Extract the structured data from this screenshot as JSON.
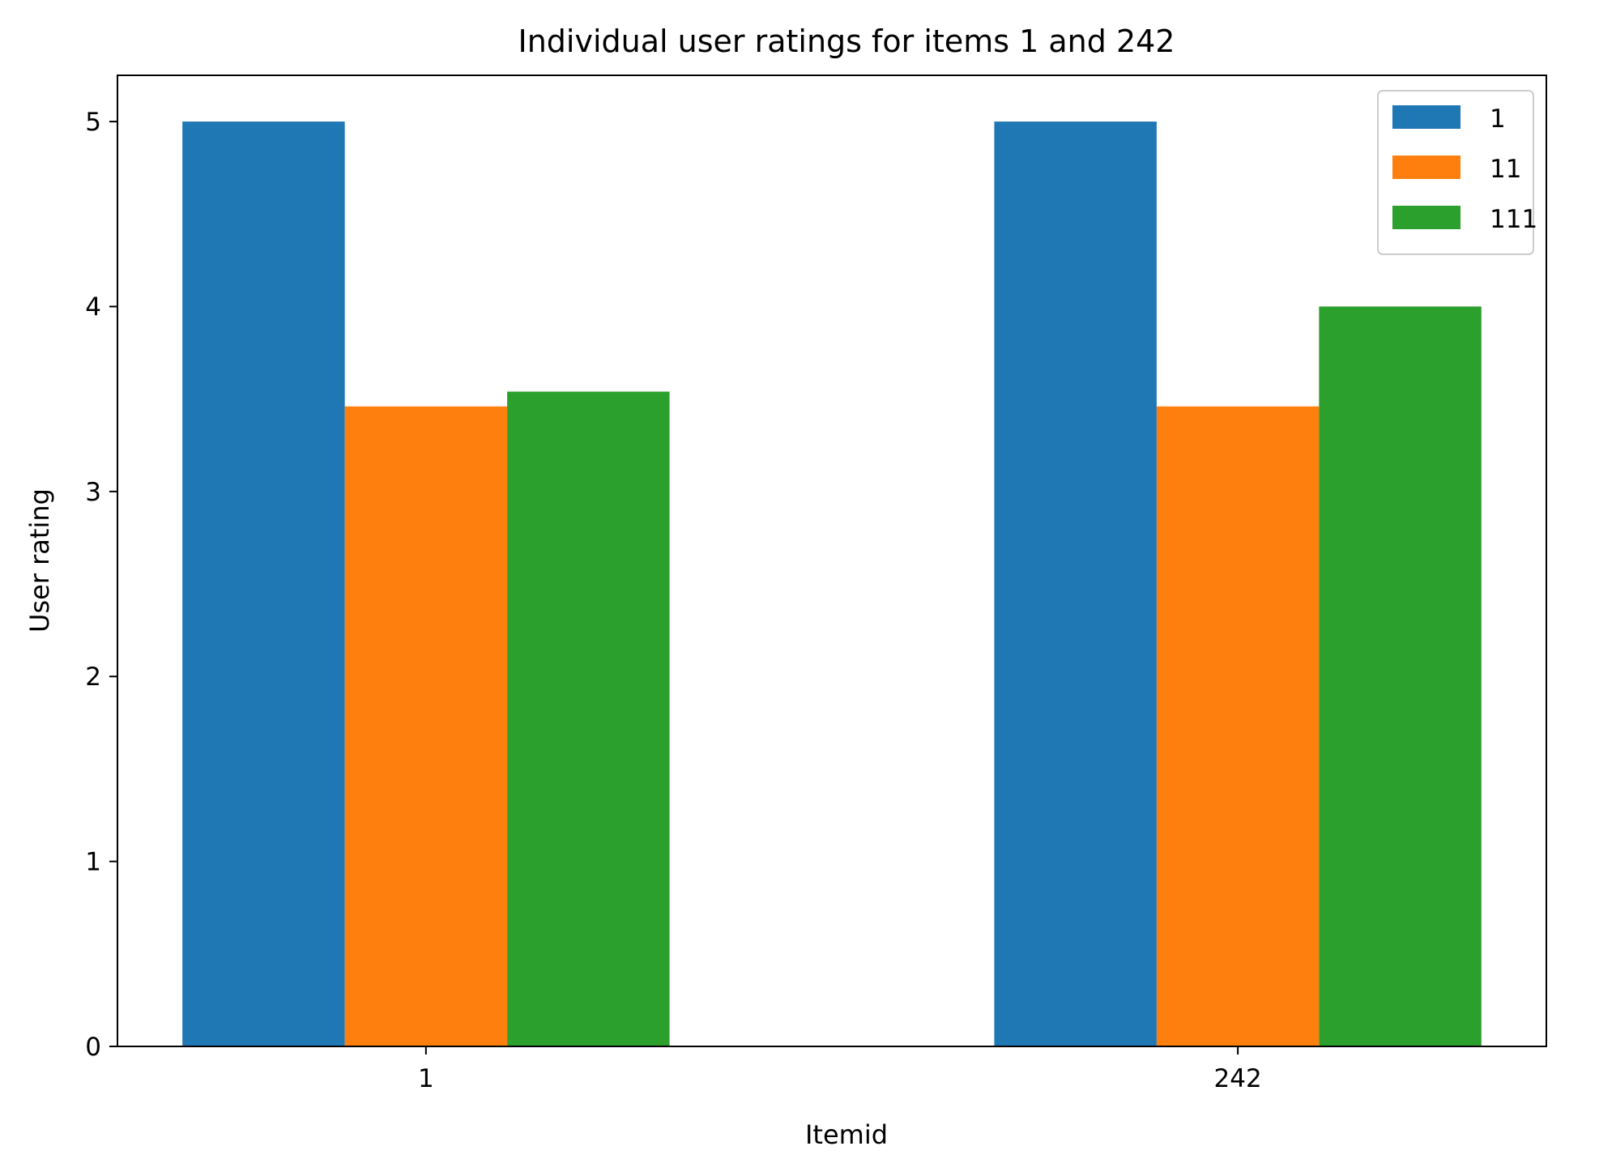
{
  "chart_data": {
    "type": "bar",
    "title": "Individual user ratings for items 1 and 242",
    "xlabel": "Itemid",
    "ylabel": "User rating",
    "categories": [
      "1",
      "242"
    ],
    "series": [
      {
        "name": "1",
        "color": "#1f77b4",
        "values": [
          5.0,
          5.0
        ]
      },
      {
        "name": "11",
        "color": "#ff7f0e",
        "values": [
          3.46,
          3.46
        ]
      },
      {
        "name": "111",
        "color": "#2ca02c",
        "values": [
          3.54,
          4.0
        ]
      }
    ],
    "ylim": [
      0,
      5.25
    ],
    "yticks": [
      "0",
      "1",
      "2",
      "3",
      "4",
      "5"
    ],
    "grid": false,
    "legend_position": "top-right"
  }
}
